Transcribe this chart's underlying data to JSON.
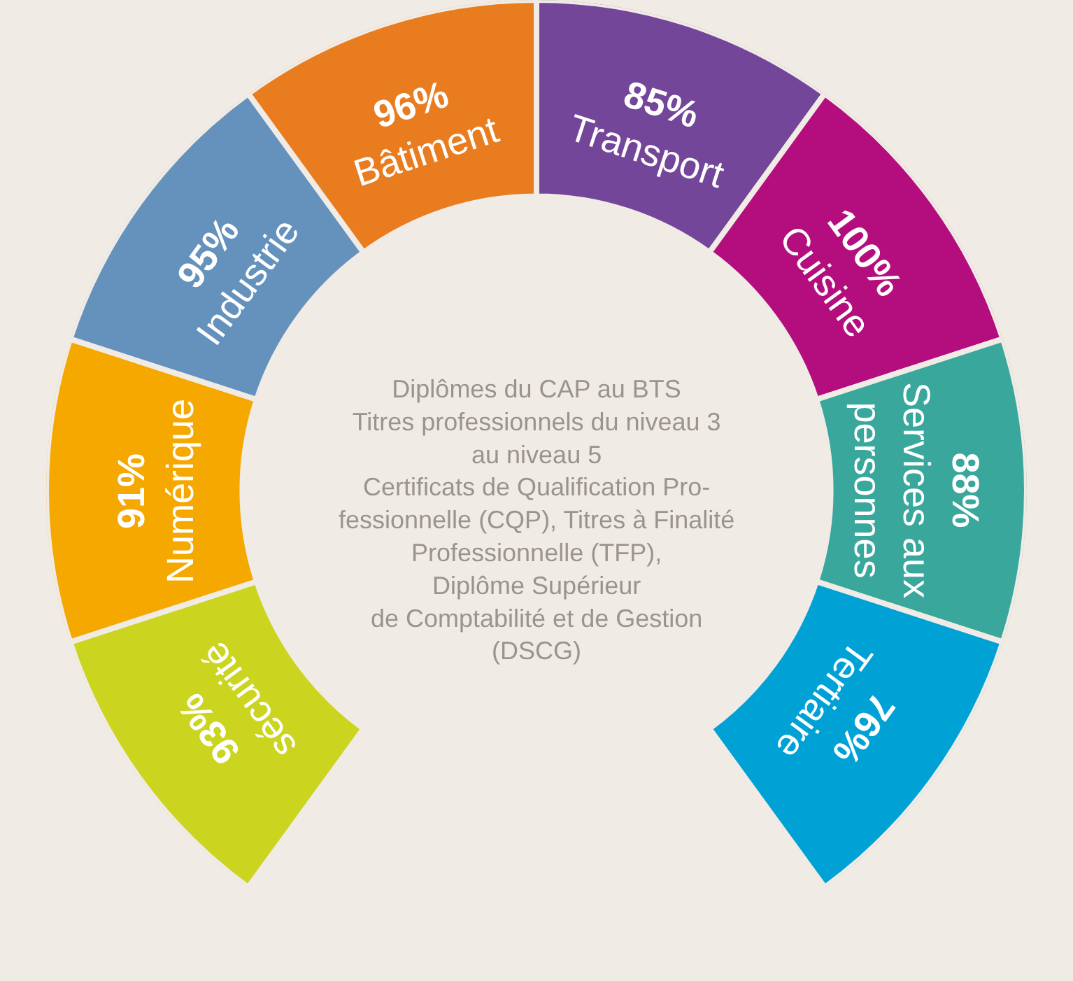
{
  "chart_data": {
    "type": "other",
    "categories": [
      "sécurité",
      "Numérique",
      "Industrie",
      "Bâtiment",
      "Transport",
      "Cuisine",
      "Services aux\npersonnes",
      "Tertiaire"
    ],
    "values": [
      93,
      91,
      95,
      96,
      85,
      100,
      88,
      76
    ],
    "value_labels": [
      "93%",
      "91%",
      "95%",
      "96%",
      "85%",
      "100%",
      "88%",
      "76%"
    ],
    "colors": [
      "#cbd51f",
      "#f5a800",
      "#6592bc",
      "#e87c1e",
      "#744699",
      "#b30d7e",
      "#3aa79d",
      "#00a2d6"
    ],
    "annotations": [
      "Diplômes du CAP au BTS\nTitres professionnels du niveau 3\nau niveau 5\nCertificats de Qualification Pro-\nfessionnelle (CQP), Titres à Finalité\nProfessionnelle (TFP),\nDiplôme Supérieur\nde Comptabilité et de Gestion\n(DSCG)"
    ]
  }
}
